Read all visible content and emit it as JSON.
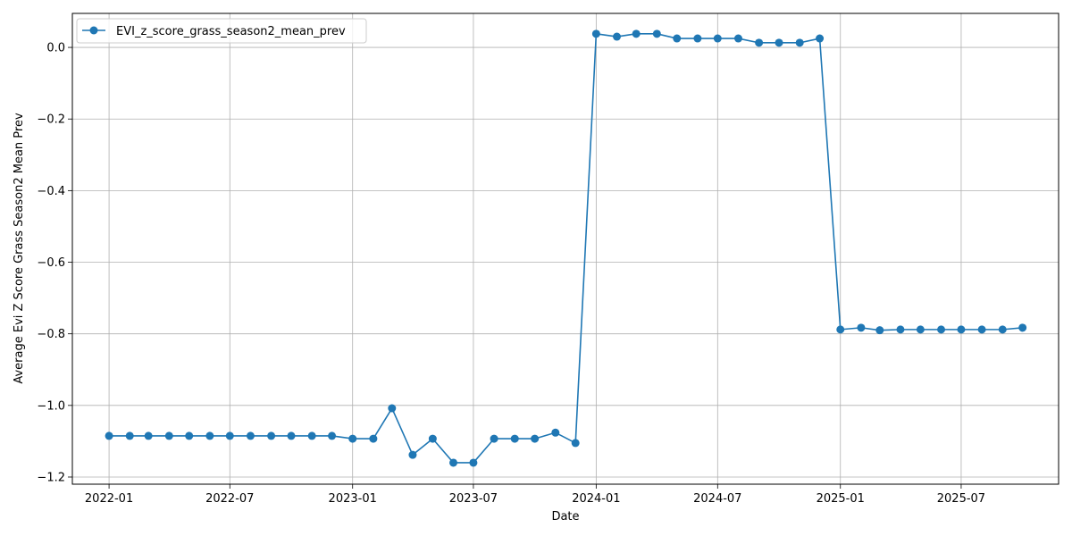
{
  "chart_data": {
    "type": "line",
    "xlabel": "Date",
    "ylabel": "Average Evi Z Score Grass Season2 Mean Prev",
    "x_ticks": [
      "2022-01",
      "2022-07",
      "2023-01",
      "2023-07",
      "2024-01",
      "2024-07",
      "2025-01",
      "2025-07"
    ],
    "y_ticks": [
      0.0,
      -0.2,
      -0.4,
      -0.6,
      -0.8,
      -1.0,
      -1.2
    ],
    "y_tick_labels": [
      "0.0",
      "−0.2",
      "−0.4",
      "−0.6",
      "−0.8",
      "−1.0",
      "−1.2"
    ],
    "xlim": [
      "2021-11-07",
      "2025-11-24"
    ],
    "ylim": [
      -1.22,
      0.095
    ],
    "grid": true,
    "legend_position": "top-left",
    "series": [
      {
        "name": "EVI_z_score_grass_season2_mean_prev",
        "color": "#1f77b4",
        "marker": "circle",
        "x": [
          "2022-01-01",
          "2022-02-01",
          "2022-03-01",
          "2022-04-01",
          "2022-05-01",
          "2022-06-01",
          "2022-07-01",
          "2022-08-01",
          "2022-09-01",
          "2022-10-01",
          "2022-11-01",
          "2022-12-01",
          "2023-01-01",
          "2023-02-01",
          "2023-03-01",
          "2023-04-01",
          "2023-05-01",
          "2023-06-01",
          "2023-07-01",
          "2023-08-01",
          "2023-09-01",
          "2023-10-01",
          "2023-11-01",
          "2023-12-01",
          "2024-01-01",
          "2024-02-01",
          "2024-03-01",
          "2024-04-01",
          "2024-05-01",
          "2024-06-01",
          "2024-07-01",
          "2024-08-01",
          "2024-09-01",
          "2024-10-01",
          "2024-11-01",
          "2024-12-01",
          "2025-01-01",
          "2025-02-01",
          "2025-03-01",
          "2025-04-01",
          "2025-05-01",
          "2025-06-01",
          "2025-07-01",
          "2025-08-01",
          "2025-09-01",
          "2025-10-01"
        ],
        "y": [
          -1.085,
          -1.085,
          -1.085,
          -1.085,
          -1.085,
          -1.085,
          -1.085,
          -1.085,
          -1.085,
          -1.085,
          -1.085,
          -1.085,
          -1.093,
          -1.093,
          -1.008,
          -1.138,
          -1.093,
          -1.16,
          -1.16,
          -1.093,
          -1.093,
          -1.093,
          -1.076,
          -1.105,
          0.038,
          0.03,
          0.038,
          0.038,
          0.025,
          0.025,
          0.025,
          0.025,
          0.013,
          0.013,
          0.013,
          0.025,
          -0.788,
          -0.783,
          -0.79,
          -0.788,
          -0.788,
          -0.788,
          -0.788,
          -0.788,
          -0.788,
          -0.783
        ]
      }
    ]
  }
}
